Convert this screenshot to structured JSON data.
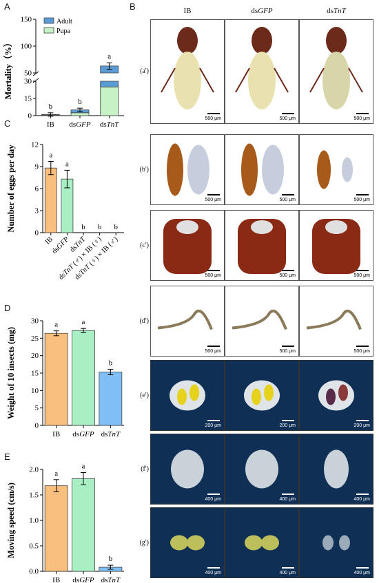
{
  "panel_letters": {
    "a": "A",
    "b": "B",
    "c": "C",
    "d": "D",
    "e": "E"
  },
  "figB": {
    "columns": [
      "IB",
      "dsGFP",
      "dsTnT"
    ],
    "rows": [
      {
        "label": "(a')",
        "scales": [
          "500 μm",
          "500 μm",
          "500 μm"
        ]
      },
      {
        "label": "(b')",
        "scales": [
          "500 μm",
          "500 μm",
          "500 μm"
        ]
      },
      {
        "label": "(c')",
        "scales": [
          "500 μm",
          "500 μm",
          "500 μm"
        ]
      },
      {
        "label": "(d')",
        "scales": [
          "500 μm",
          "500 μm",
          "500 μm"
        ]
      },
      {
        "label": "(e')",
        "scales": [
          "200 μm",
          "200 μm",
          "200 μm"
        ]
      },
      {
        "label": "(f')",
        "scales": [
          "400 μm",
          "400 μm",
          "400 μm"
        ]
      },
      {
        "label": "(g')",
        "scales": [
          "400 μm",
          "400 μm",
          "400 μm"
        ]
      }
    ]
  },
  "chart_data": [
    {
      "id": "A",
      "type": "bar",
      "stacked": true,
      "ylabel": "Mortality（%）",
      "categories": [
        "IB",
        "dsGFP",
        "dsTnT"
      ],
      "series": [
        {
          "name": "Adult",
          "color": "#5b9bd5",
          "values": [
            0.5,
            2.5,
            38
          ]
        },
        {
          "name": "Pupa",
          "color": "#c6f2c6",
          "values": [
            0.5,
            2.5,
            25
          ]
        }
      ],
      "errors": [
        1.5,
        1.5,
        6
      ],
      "sig": [
        "b",
        "b",
        "a"
      ],
      "yticks": [
        0,
        15,
        30,
        50,
        100,
        150
      ],
      "broken_axis": true,
      "legend": "top-left"
    },
    {
      "id": "C",
      "type": "bar",
      "ylabel": "Number of eggs per day",
      "categories": [
        "IB",
        "dsGFP",
        "dsTnT",
        "dsTnT (♂) × IB (♀)",
        "dsTnT (♀) × IB (♂)"
      ],
      "values": [
        8.8,
        7.3,
        0,
        0,
        0
      ],
      "errors": [
        0.9,
        1.2,
        0,
        0,
        0
      ],
      "colors": [
        "#f9bf7f",
        "#a8f0c4",
        "#7fbff5",
        "#7fbff5",
        "#7fbff5"
      ],
      "sig": [
        "a",
        "a",
        "b",
        "b",
        "b"
      ],
      "ylim": [
        0,
        12
      ],
      "yticks": [
        0,
        3,
        6,
        9,
        12
      ]
    },
    {
      "id": "D",
      "type": "bar",
      "ylabel": "Weight of 10 insects (mg)",
      "categories": [
        "IB",
        "dsGFP",
        "dsTnT"
      ],
      "values": [
        26.4,
        27.2,
        15.3
      ],
      "errors": [
        0.7,
        0.6,
        0.8
      ],
      "colors": [
        "#f9bf7f",
        "#a8f0c4",
        "#7fbff5"
      ],
      "sig": [
        "a",
        "a",
        "b"
      ],
      "ylim": [
        0,
        30
      ],
      "yticks": [
        0,
        5,
        10,
        15,
        20,
        25,
        30
      ]
    },
    {
      "id": "E",
      "type": "bar",
      "ylabel": "Moving speed (cm/s)",
      "categories": [
        "IB",
        "dsGFP",
        "dsTnT"
      ],
      "values": [
        1.68,
        1.82,
        0.08
      ],
      "errors": [
        0.12,
        0.12,
        0.04
      ],
      "colors": [
        "#f9bf7f",
        "#a8f0c4",
        "#7fbff5"
      ],
      "sig": [
        "a",
        "a",
        "b"
      ],
      "ylim": [
        0,
        2.0
      ],
      "yticks": [
        0.0,
        0.5,
        1.0,
        1.5,
        2.0
      ]
    }
  ]
}
